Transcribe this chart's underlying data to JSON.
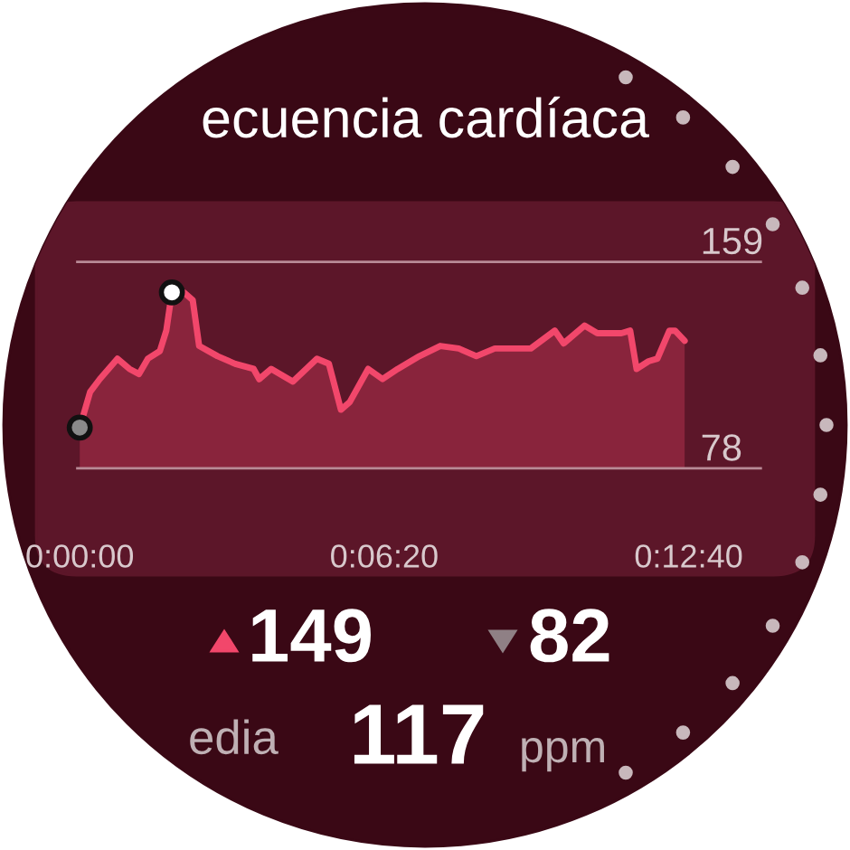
{
  "chart_data": {
    "type": "area",
    "title": "ecuencia cardíaca",
    "x": [
      0,
      13,
      25,
      47,
      62,
      74,
      85,
      100,
      108,
      115,
      130,
      141,
      149,
      172,
      194,
      217,
      224,
      239,
      266,
      296,
      311,
      326,
      337,
      360,
      378,
      397,
      424,
      450,
      473,
      495,
      518,
      563,
      593,
      604,
      630,
      646,
      676,
      687,
      695,
      710,
      721,
      736,
      743,
      755
    ],
    "series": [
      {
        "type": "area",
        "color": "#f2476b",
        "values": [
          94,
          108,
          113,
          121,
          117,
          115,
          121,
          124,
          132,
          147,
          147,
          144,
          126,
          122,
          119,
          117,
          113,
          117,
          112,
          121,
          119,
          101,
          104,
          117,
          113,
          117,
          122,
          126,
          125,
          122,
          125,
          125,
          132,
          127,
          134,
          131,
          131,
          132,
          117,
          120,
          121,
          132,
          132,
          128
        ]
      },
      {
        "type": "scatter",
        "x": [
          0,
          115
        ],
        "values": [
          94,
          147
        ],
        "colors": [
          "#8a8a8a",
          "#ffffff"
        ]
      }
    ],
    "xlim": [
      -3,
      850
    ],
    "ylim": [
      78,
      159
    ],
    "xticks": [
      {
        "value": 0,
        "label": "0:00:00"
      },
      {
        "value": 380,
        "label": "0:06:20"
      },
      {
        "value": 760,
        "label": "0:12:40"
      }
    ],
    "yticks": [
      78,
      159
    ],
    "annotations": [
      "149",
      "82",
      "edia",
      "117",
      "ppm"
    ]
  }
}
